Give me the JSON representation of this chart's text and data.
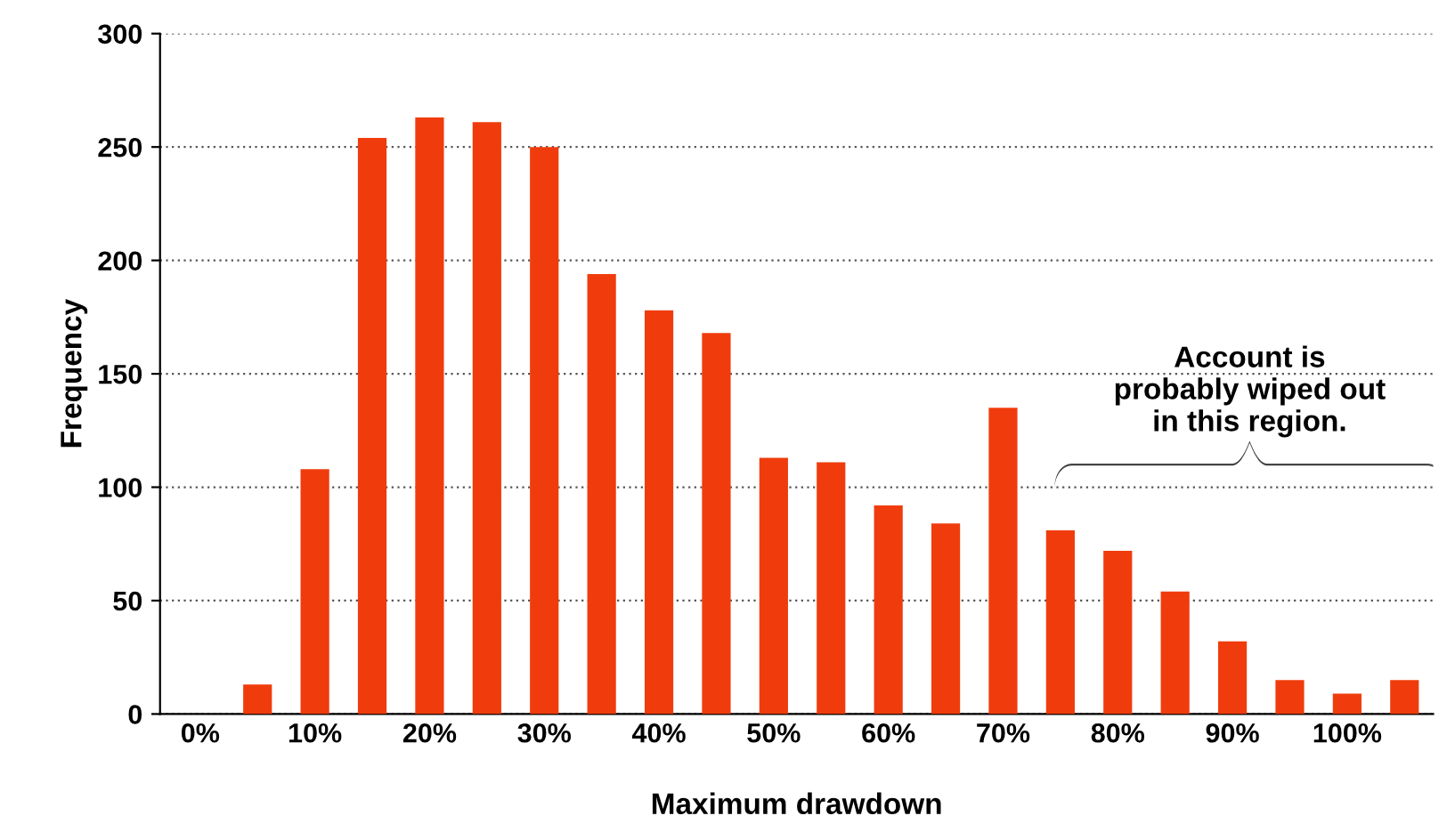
{
  "chart_data": {
    "type": "bar",
    "xlabel": "Maximum drawdown",
    "ylabel": "Frequency",
    "categories": [
      "0%",
      null,
      "10%",
      null,
      "20%",
      null,
      "30%",
      null,
      "40%",
      null,
      "50%",
      null,
      "60%",
      null,
      "70%",
      null,
      "80%",
      null,
      "90%",
      null,
      "100%",
      null
    ],
    "values": [
      0,
      13,
      108,
      254,
      263,
      261,
      250,
      194,
      178,
      168,
      113,
      111,
      92,
      84,
      135,
      81,
      72,
      54,
      32,
      15,
      9,
      15
    ],
    "color": "#f03c0c",
    "ylim": [
      0,
      300
    ],
    "yticks": [
      0,
      50,
      100,
      150,
      200,
      250,
      300
    ],
    "grid": "y",
    "annotations": [
      "Account is\nprobably wiped out\nin this region."
    ]
  }
}
